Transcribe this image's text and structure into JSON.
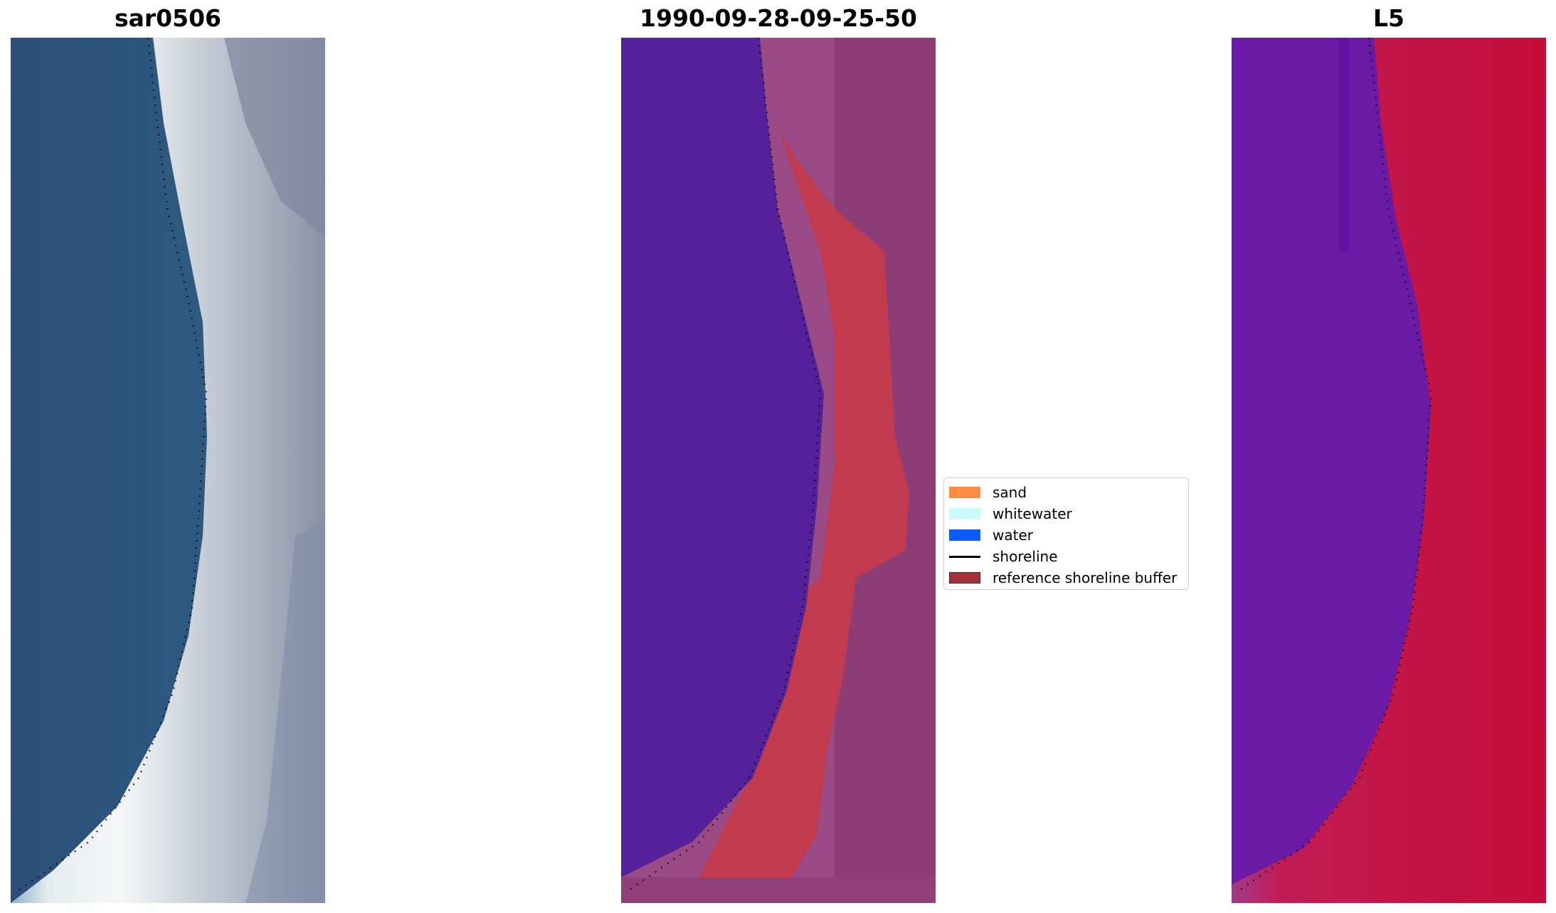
{
  "panels": [
    {
      "title": "sar0506"
    },
    {
      "title": "1990-09-28-09-25-50"
    },
    {
      "title": "L5"
    }
  ],
  "legend": {
    "items": [
      {
        "label": "sand",
        "color": "#ff8c42",
        "kind": "patch"
      },
      {
        "label": "whitewater",
        "color": "#c8fafa",
        "kind": "patch"
      },
      {
        "label": "water",
        "color": "#0a5cff",
        "kind": "patch"
      },
      {
        "label": "shoreline",
        "color": "#000000",
        "kind": "line"
      },
      {
        "label": "reference shoreline buffer",
        "color": "#a0323a",
        "kind": "patch"
      }
    ]
  },
  "colors": {
    "water_true_color": "#2e5a82",
    "beach_white": "#eef0f2",
    "classified_water": "#54219a",
    "classified_buffer": "#c23a4e",
    "classified_land": "#9a4a85",
    "index_water": "#6a1aa5",
    "index_land": "#c8143e"
  }
}
